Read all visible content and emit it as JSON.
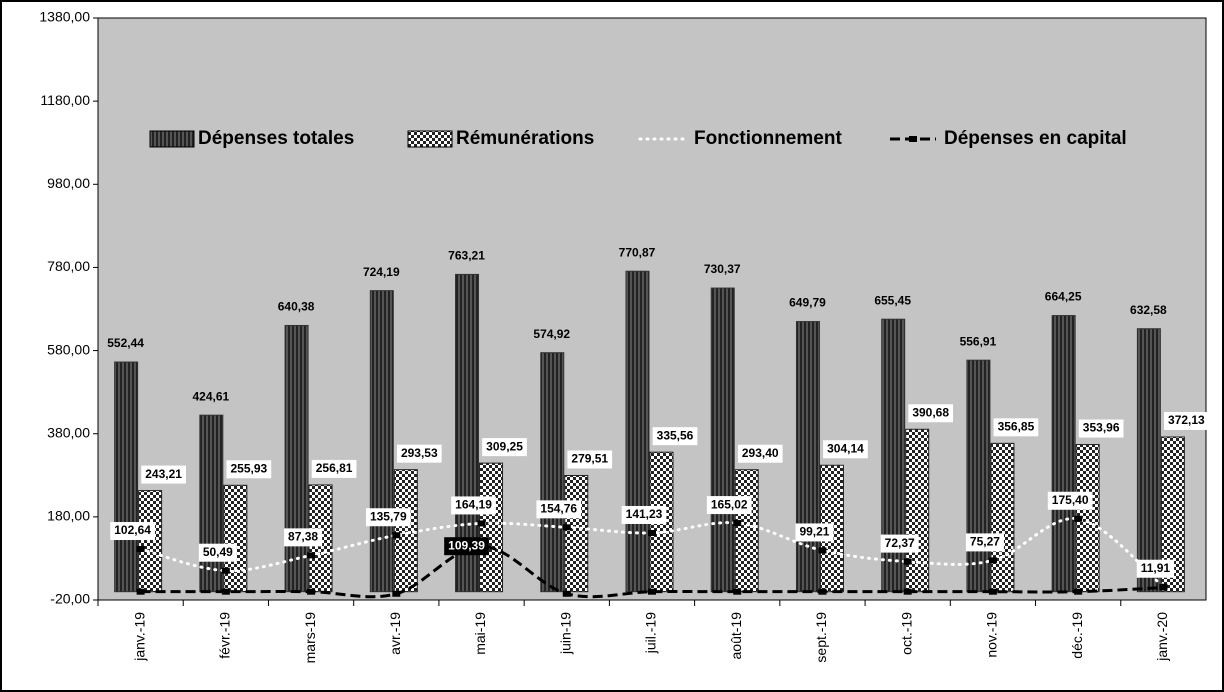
{
  "chart_data": {
    "type": "bar",
    "categories": [
      "janv.-19",
      "févr.-19",
      "mars-19",
      "avr.-19",
      "mai-19",
      "juin-19",
      "juil.-19",
      "août-19",
      "sept.-19",
      "oct.-19",
      "nov.-19",
      "déc.-19",
      "janv.-20"
    ],
    "ylim": [
      -20,
      1380
    ],
    "yticks": [
      {
        "value": -20,
        "label": "-20,00"
      },
      {
        "value": 180,
        "label": "180,00"
      },
      {
        "value": 380,
        "label": "380,00"
      },
      {
        "value": 580,
        "label": "580,00"
      },
      {
        "value": 780,
        "label": "780,00"
      },
      {
        "value": 980,
        "label": "980,00"
      },
      {
        "value": 1180,
        "label": "1180,00"
      },
      {
        "value": 1380,
        "label": "1380,00"
      }
    ],
    "legend": "top",
    "series": [
      {
        "name": "Dépenses totales",
        "type": "bar",
        "color": "#333333",
        "values": [
          552.44,
          424.61,
          640.38,
          724.19,
          763.21,
          574.92,
          770.87,
          730.37,
          649.79,
          655.45,
          556.91,
          664.25,
          632.58
        ],
        "value_labels": [
          "552,44",
          "424,61",
          "640,38",
          "724,19",
          "763,21",
          "574,92",
          "770,87",
          "730,37",
          "649,79",
          "655,45",
          "556,91",
          "664,25",
          "632,58"
        ]
      },
      {
        "name": "Rémunérations",
        "type": "bar",
        "color": "#222222",
        "values": [
          243.21,
          255.93,
          256.81,
          293.53,
          309.25,
          279.51,
          335.56,
          293.4,
          304.14,
          390.68,
          356.85,
          353.96,
          372.13
        ],
        "value_labels": [
          "243,21",
          "255,93",
          "256,81",
          "293,53",
          "309,25",
          "279,51",
          "335,56",
          "293,40",
          "304,14",
          "390,68",
          "356,85",
          "353,96",
          "372,13"
        ]
      },
      {
        "name": "Fonctionnement",
        "type": "line",
        "color": "#ffffff",
        "values": [
          102.64,
          50.49,
          87.38,
          135.79,
          164.19,
          154.76,
          141.23,
          165.02,
          99.21,
          72.37,
          75.27,
          175.4,
          11.91
        ],
        "value_labels": [
          "102,64",
          "50,49",
          "87,38",
          "135,79",
          "164,19",
          "154,76",
          "141,23",
          "165,02",
          "99,21",
          "72,37",
          "75,27",
          "175,40",
          "11,91"
        ]
      },
      {
        "name": "Dépenses en capital",
        "type": "line",
        "color": "#000000",
        "values": [
          0,
          0,
          0,
          -5,
          109.39,
          -5,
          0,
          0,
          0,
          0,
          0,
          0,
          10
        ],
        "value_labels": [
          null,
          null,
          null,
          null,
          "109,39",
          null,
          null,
          null,
          null,
          null,
          null,
          null,
          null
        ]
      }
    ]
  }
}
